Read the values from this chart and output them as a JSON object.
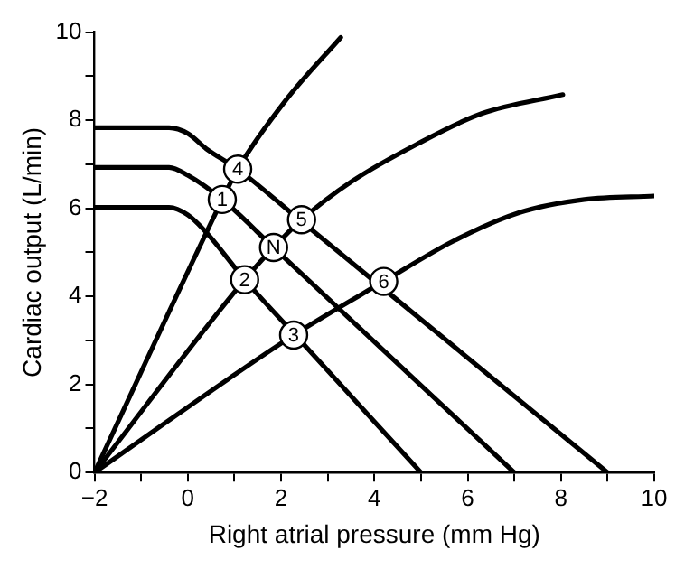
{
  "chart_data": {
    "type": "line",
    "xlabel": "Right atrial pressure (mm Hg)",
    "ylabel": "Cardiac output (L/min)",
    "xlim": [
      -2,
      10
    ],
    "ylim": [
      0,
      10
    ],
    "xticks": [
      {
        "value": -2,
        "label": "−2"
      },
      {
        "value": -1,
        "label": null
      },
      0,
      {
        "value": 1,
        "label": null
      },
      2,
      {
        "value": 3,
        "label": null
      },
      4,
      {
        "value": 5,
        "label": null
      },
      6,
      {
        "value": 7,
        "label": null
      },
      8,
      {
        "value": 9,
        "label": null
      },
      10
    ],
    "yticks": [
      0,
      {
        "value": 1,
        "label": null
      },
      2,
      {
        "value": 3,
        "label": null
      },
      4,
      {
        "value": 5,
        "label": null
      },
      6,
      {
        "value": 7,
        "label": null
      },
      8,
      {
        "value": 9,
        "label": null
      },
      10
    ],
    "grid": false,
    "legend": false,
    "marker": "none",
    "line_style": "solid",
    "series": [
      {
        "color": "#000000",
        "x": [
          -2,
          -0.4,
          0,
          0.4,
          1.07,
          2.44,
          4.2,
          9
        ],
        "values": [
          7.83,
          7.83,
          7.7,
          7.35,
          6.89,
          5.7,
          4.17,
          0
        ]
      },
      {
        "color": "#000000",
        "x": [
          -2,
          -0.4,
          0,
          0.74,
          1.84,
          7
        ],
        "values": [
          6.93,
          6.93,
          6.75,
          6.2,
          5.11,
          0
        ]
      },
      {
        "color": "#000000",
        "x": [
          -2,
          -0.4,
          0,
          0.4,
          1.22,
          2.27,
          5
        ],
        "values": [
          6.02,
          6.02,
          5.85,
          5.45,
          4.38,
          3.16,
          0
        ]
      },
      {
        "color": "#000000",
        "x": [
          -2,
          0.74,
          1.07,
          2.1,
          3.28
        ],
        "values": [
          0,
          6.2,
          6.89,
          8.45,
          9.88
        ]
      },
      {
        "color": "#000000",
        "x": [
          -2,
          1.22,
          1.84,
          2.44,
          3.5,
          4.9,
          6.3,
          8.04
        ],
        "values": [
          0,
          4.38,
          5.11,
          5.74,
          6.6,
          7.45,
          8.15,
          8.58
        ]
      },
      {
        "color": "#000000",
        "x": [
          -2,
          2.27,
          4.2,
          5.7,
          7.1,
          8.5,
          10
        ],
        "values": [
          0,
          3.12,
          4.34,
          5.26,
          5.9,
          6.2,
          6.28
        ]
      }
    ],
    "annotations": [
      {
        "text": "1",
        "x": 0.74,
        "y": 6.2
      },
      {
        "text": "2",
        "x": 1.22,
        "y": 4.38
      },
      {
        "text": "3",
        "x": 2.27,
        "y": 3.12
      },
      {
        "text": "4",
        "x": 1.07,
        "y": 6.89
      },
      {
        "text": "5",
        "x": 2.44,
        "y": 5.74
      },
      {
        "text": "6",
        "x": 4.2,
        "y": 4.34
      },
      {
        "text": "N",
        "x": 1.84,
        "y": 5.11
      }
    ]
  }
}
